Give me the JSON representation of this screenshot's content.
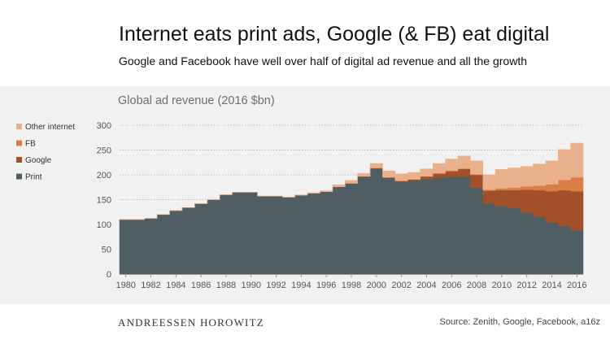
{
  "header": {
    "title": "Internet eats print ads, Google (& FB) eat digital",
    "subtitle": "Google and Facebook have well over half of digital ad revenue and all the growth"
  },
  "footer": {
    "brand": "ANDREESSEN HOROWITZ",
    "source": "Source: Zenith, Google, Facebook, a16z"
  },
  "chart_data": {
    "type": "area",
    "title": "Global ad revenue (2016 $bn)",
    "ylim": [
      0,
      300
    ],
    "yticks": [
      0,
      50,
      100,
      150,
      200,
      250,
      300
    ],
    "xticks": [
      1980,
      1982,
      1984,
      1986,
      1988,
      1990,
      1992,
      1994,
      1996,
      1998,
      2000,
      2002,
      2004,
      2006,
      2008,
      2010,
      2012,
      2014,
      2016
    ],
    "x": [
      1980,
      1981,
      1982,
      1983,
      1984,
      1985,
      1986,
      1987,
      1988,
      1989,
      1990,
      1991,
      1992,
      1993,
      1994,
      1995,
      1996,
      1997,
      1998,
      1999,
      2000,
      2001,
      2002,
      2003,
      2004,
      2005,
      2006,
      2007,
      2008,
      2009,
      2010,
      2011,
      2012,
      2013,
      2014,
      2015,
      2016
    ],
    "series": [
      {
        "name": "Print",
        "color": "#4e5e63",
        "values": [
          110,
          110,
          112,
          120,
          128,
          134,
          142,
          150,
          160,
          165,
          165,
          157,
          157,
          155,
          159,
          163,
          166,
          176,
          183,
          196,
          212,
          194,
          186,
          188,
          191,
          194,
          196,
          196,
          174,
          142,
          137,
          133,
          124,
          115,
          104,
          97,
          88
        ]
      },
      {
        "name": "Google",
        "color": "#a1502a",
        "values": [
          0,
          0,
          0,
          0,
          0,
          0,
          0,
          0,
          0,
          0,
          0,
          0,
          0,
          0,
          0,
          0,
          0,
          0,
          0,
          1,
          2,
          1,
          2,
          3,
          6,
          9,
          12,
          16,
          26,
          26,
          32,
          36,
          46,
          54,
          63,
          72,
          79
        ]
      },
      {
        "name": "FB",
        "color": "#db7e45",
        "values": [
          0,
          0,
          0,
          0,
          0,
          0,
          0,
          0,
          0,
          0,
          0,
          0,
          0,
          0,
          0,
          0,
          0,
          0,
          0,
          0,
          0,
          0,
          0,
          0,
          0,
          0,
          0,
          1,
          1,
          2,
          4,
          5,
          7,
          9,
          14,
          21,
          28
        ]
      },
      {
        "name": "Other internet",
        "color": "#e8b08b",
        "values": [
          0,
          0,
          0,
          0,
          0,
          0,
          0,
          0,
          0,
          0,
          0,
          0,
          0,
          0,
          0,
          1,
          2,
          4,
          6,
          6,
          9,
          13,
          14,
          14,
          15,
          20,
          24,
          25,
          27,
          30,
          38,
          40,
          40,
          44,
          47,
          61,
          69
        ]
      }
    ],
    "legend": [
      "Other internet",
      "FB",
      "Google",
      "Print"
    ],
    "legend_position": "left"
  }
}
